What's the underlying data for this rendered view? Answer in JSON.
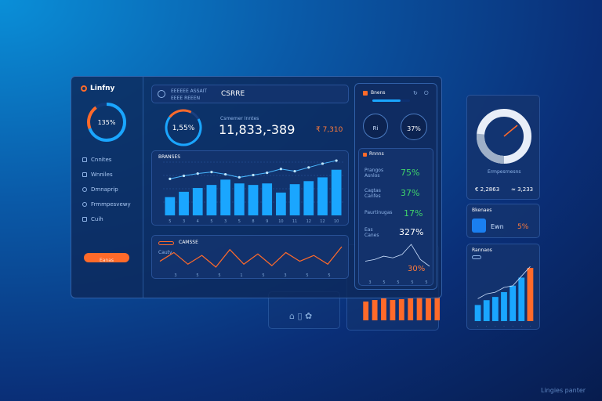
{
  "app": {
    "title": "Linfny"
  },
  "sidebar": {
    "ring_value": "135%",
    "items": [
      {
        "label": "Cnnites"
      },
      {
        "label": "Wnniles"
      },
      {
        "label": "Dmnaprip"
      },
      {
        "label": "Frmmpesvewy"
      },
      {
        "label": "Cuih"
      }
    ],
    "button_label": "Eanas"
  },
  "header": {
    "subtitle_line1": "EEEEEE ASSAIT",
    "subtitle_line2": "EEEE REEEN",
    "title": "CSRRE"
  },
  "kpi": {
    "ring_value": "1,55%",
    "caption": "Csmemer Inntes",
    "big_number": "11,833,-389",
    "small_value": "₹ 7,310"
  },
  "bar_panel": {
    "title": "BRANSES",
    "chart_data": {
      "type": "bar",
      "values": [
        24,
        31,
        36,
        40,
        47,
        42,
        40,
        42,
        30,
        41,
        45,
        50,
        60
      ],
      "ylim": [
        0,
        70
      ],
      "line": [
        48,
        52,
        55,
        57,
        54,
        50,
        53,
        56,
        61,
        58,
        63,
        68,
        72
      ],
      "tick_labels": [
        "5",
        "3",
        "4",
        "5",
        "3",
        "5",
        "8",
        "9",
        "10",
        "11",
        "12",
        "12",
        "10"
      ]
    }
  },
  "line_panel": {
    "title": "CAMSSE",
    "left_label": "Cauty",
    "chart_data": {
      "type": "line",
      "values": [
        14,
        20,
        12,
        18,
        10,
        22,
        12,
        19,
        11,
        20,
        14,
        18,
        12,
        24
      ],
      "tick_labels": [
        "3",
        "5",
        "5",
        "1",
        "5",
        "3",
        "5",
        "5"
      ]
    }
  },
  "right_panel": {
    "title": "Bnens",
    "small_ring_label": "Ri",
    "small_ring_value": "37%",
    "section_title": "Rnnns",
    "stats": [
      {
        "label": "Prangos Asnlos",
        "value": "75%",
        "color": "#3fd46a"
      },
      {
        "label": "Cagtas Canfes",
        "value": "37%",
        "color": "#3fd46a"
      },
      {
        "label": "Paurtinugas",
        "value": "17%",
        "color": "#3fd46a"
      },
      {
        "label": "Eas Canes",
        "value": "327%",
        "color": "#ffffff"
      }
    ],
    "mini_line": {
      "values": [
        8,
        9,
        11,
        10,
        12,
        18,
        9,
        5
      ],
      "ticks": [
        "3",
        "5",
        "5",
        "5",
        "5"
      ],
      "value": "30%"
    }
  },
  "gauge_card": {
    "label": "Ermpesrnesns",
    "left_value": "€ 2,2863",
    "right_value": "≈ 3,233"
  },
  "small_card": {
    "title": "Bkenaes",
    "left_value": "Ewn",
    "right_value": "5%"
  },
  "trend_card": {
    "title": "Rannaos",
    "chart_data": {
      "type": "bar",
      "values": [
        20,
        26,
        30,
        36,
        44,
        54,
        66
      ],
      "line": [
        22,
        28,
        30,
        36,
        38,
        50,
        62
      ]
    }
  },
  "bottom_bars": {
    "chart_data": {
      "type": "bar",
      "values": [
        24,
        26,
        28,
        26,
        27,
        28,
        30,
        28,
        30,
        66
      ]
    }
  },
  "bg_card_label": "⌂ ▯ ✿",
  "watermark": "Lingies panter",
  "colors": {
    "accent_blue": "#1aa6ff",
    "accent_orange": "#ff6a2a",
    "accent_green": "#3fd46a"
  }
}
